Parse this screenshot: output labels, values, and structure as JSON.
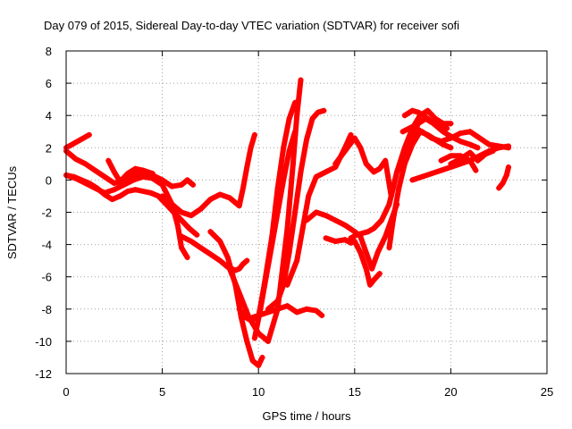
{
  "chart_data": {
    "type": "scatter",
    "title": "Day 079 of 2015, Sidereal Day-to-day VTEC variation (SDTVAR) for receiver sofi",
    "xlabel": "GPS time / hours",
    "ylabel": "SDTVAR / TECUs",
    "xlim": [
      0,
      25
    ],
    "ylim": [
      -12,
      8
    ],
    "xticks": [
      "0",
      "5",
      "10",
      "15",
      "20",
      "25"
    ],
    "yticks": [
      "8",
      "6",
      "4",
      "2",
      "0",
      "-2",
      "-4",
      "-6",
      "-8",
      "-10",
      "-12"
    ],
    "grid": true,
    "marker": "+",
    "color": "#ff0000",
    "series": [
      {
        "x": [
          0.0,
          0.4,
          0.8,
          1.2,
          1.6,
          2.0,
          2.4,
          2.8,
          3.2,
          3.6,
          4.0,
          4.4,
          4.8,
          5.2,
          5.6,
          6.0,
          6.4,
          6.8
        ],
        "y": [
          0.3,
          0.2,
          0.0,
          -0.2,
          -0.5,
          -0.9,
          -1.2,
          -1.0,
          -0.7,
          -0.6,
          -0.7,
          -0.8,
          -1.0,
          -1.5,
          -2.0,
          -2.5,
          -3.0,
          -3.4
        ]
      },
      {
        "x": [
          0.0,
          0.3,
          0.6,
          0.9,
          1.2
        ],
        "y": [
          2.0,
          2.2,
          2.4,
          2.6,
          2.8
        ]
      },
      {
        "x": [
          0.0,
          0.5,
          1.0,
          1.5,
          2.0,
          2.5,
          3.0,
          3.5,
          4.0,
          4.5,
          5.0,
          5.5,
          6.0,
          6.3,
          6.6
        ],
        "y": [
          1.8,
          1.3,
          1.0,
          0.6,
          0.2,
          -0.2,
          0.0,
          0.3,
          0.5,
          0.3,
          0.0,
          -0.4,
          -0.3,
          0.0,
          -0.3
        ]
      },
      {
        "x": [
          0.0,
          0.5,
          1.0,
          1.5,
          2.0,
          2.5,
          3.0,
          3.5,
          4.0,
          4.5,
          5.0,
          5.5,
          5.8,
          6.0,
          6.3
        ],
        "y": [
          0.3,
          0.1,
          -0.2,
          -0.5,
          -0.8,
          -0.6,
          -0.3,
          0.0,
          0.2,
          0.1,
          -0.3,
          -1.5,
          -2.8,
          -4.2,
          -4.8
        ]
      },
      {
        "x": [
          2.2,
          2.5,
          2.8,
          3.2,
          3.6,
          4.0,
          4.5
        ],
        "y": [
          1.2,
          0.5,
          -0.1,
          0.4,
          0.7,
          0.6,
          0.4
        ]
      },
      {
        "x": [
          5.0,
          5.5,
          6.0,
          6.5,
          7.0,
          7.5,
          8.0,
          8.5,
          9.0,
          9.2,
          9.4,
          9.6,
          9.8
        ],
        "y": [
          -1.0,
          -1.5,
          -2.0,
          -2.2,
          -1.8,
          -1.2,
          -0.9,
          -1.1,
          -1.6,
          -0.5,
          0.8,
          2.0,
          2.8
        ]
      },
      {
        "x": [
          6.0,
          6.5,
          7.0,
          7.5,
          8.0,
          8.4,
          8.8,
          9.0,
          9.2,
          9.4
        ],
        "y": [
          -3.5,
          -3.8,
          -4.2,
          -4.6,
          -5.0,
          -5.4,
          -5.6,
          -5.5,
          -5.2,
          -5.0
        ]
      },
      {
        "x": [
          7.5,
          8.0,
          8.4,
          8.8,
          9.1,
          9.4,
          9.7,
          10.0,
          10.2
        ],
        "y": [
          -3.2,
          -3.8,
          -4.8,
          -6.5,
          -8.5,
          -10.0,
          -11.2,
          -11.5,
          -11.0
        ]
      },
      {
        "x": [
          8.5,
          9.0,
          9.5,
          10.0,
          10.5,
          11.0,
          11.5,
          11.8,
          12.0,
          12.2
        ],
        "y": [
          -5.5,
          -7.0,
          -8.5,
          -9.5,
          -10.0,
          -8.0,
          -3.0,
          1.0,
          4.0,
          6.2
        ]
      },
      {
        "x": [
          9.0,
          9.3,
          9.6,
          10.0,
          10.3,
          10.7,
          11.0,
          11.3,
          11.6,
          11.9
        ],
        "y": [
          -8.0,
          -8.5,
          -8.7,
          -8.5,
          -6.5,
          -3.5,
          -0.5,
          2.0,
          3.8,
          4.8
        ]
      },
      {
        "x": [
          9.5,
          10.0,
          10.5,
          11.0,
          11.5,
          12.0,
          12.5,
          13.0,
          13.3
        ],
        "y": [
          -8.6,
          -8.4,
          -8.2,
          -8.0,
          -7.8,
          -8.2,
          -8.0,
          -8.1,
          -8.4
        ]
      },
      {
        "x": [
          9.8,
          10.1,
          10.4,
          10.7,
          11.0,
          11.3,
          11.6,
          11.9
        ],
        "y": [
          -9.8,
          -8.0,
          -6.0,
          -4.0,
          -2.0,
          0.0,
          1.8,
          3.0
        ]
      },
      {
        "x": [
          10.5,
          11.0,
          11.3,
          11.6,
          11.9,
          12.2,
          12.5,
          12.8,
          13.1,
          13.4
        ],
        "y": [
          -8.0,
          -7.5,
          -6.5,
          -4.5,
          -2.0,
          0.5,
          2.5,
          3.8,
          4.2,
          4.3
        ]
      },
      {
        "x": [
          11.5,
          12.0,
          12.3,
          12.6,
          13.0,
          13.5,
          14.0,
          14.5,
          14.8
        ],
        "y": [
          -6.5,
          -5.0,
          -3.0,
          -1.0,
          0.2,
          0.5,
          0.8,
          2.0,
          2.8
        ]
      },
      {
        "x": [
          12.5,
          13.0,
          13.5,
          14.0,
          14.5,
          15.0,
          15.3,
          15.6,
          15.9,
          16.2,
          16.6,
          16.9,
          17.2
        ],
        "y": [
          -2.5,
          -2.0,
          -2.2,
          -2.5,
          -2.8,
          -3.2,
          -3.5,
          -4.5,
          -5.5,
          -4.5,
          -3.5,
          -2.5,
          -1.5
        ]
      },
      {
        "x": [
          13.5,
          14.0,
          14.5,
          14.8,
          15.0,
          15.3,
          15.6,
          15.8,
          16.0,
          16.3
        ],
        "y": [
          -3.6,
          -3.8,
          -3.7,
          -3.9,
          -3.8,
          -4.5,
          -5.5,
          -6.5,
          -6.2,
          -5.8
        ]
      },
      {
        "x": [
          14.0,
          14.5,
          15.0,
          15.3,
          15.6,
          16.0,
          16.3,
          16.6,
          16.9,
          17.2,
          17.6,
          18.0,
          18.3,
          18.7,
          19.1,
          19.6,
          20.0,
          20.5,
          21.0,
          21.4
        ],
        "y": [
          1.0,
          1.8,
          2.6,
          2.0,
          1.0,
          0.5,
          0.7,
          1.2,
          -1.0,
          0.5,
          1.5,
          2.5,
          3.5,
          3.8,
          3.5,
          3.0,
          2.7,
          2.4,
          2.2,
          2.0
        ]
      },
      {
        "x": [
          14.8,
          15.1,
          15.4,
          15.7,
          16.0,
          16.4,
          16.8,
          17.2,
          17.6,
          18.0,
          18.4,
          18.8,
          19.2,
          19.6,
          20.0
        ],
        "y": [
          -3.6,
          -3.4,
          -3.3,
          -3.2,
          -3.0,
          -2.5,
          -1.5,
          0.5,
          2.0,
          3.2,
          4.0,
          4.3,
          3.8,
          3.5,
          3.5
        ]
      },
      {
        "x": [
          16.8,
          17.0,
          17.3,
          17.6,
          18.0,
          18.4,
          18.8,
          19.2,
          19.6,
          20.0
        ],
        "y": [
          -4.2,
          -2.5,
          -0.5,
          1.0,
          2.2,
          3.0,
          2.8,
          2.5,
          2.2,
          2.0
        ]
      },
      {
        "x": [
          17.5,
          18.0,
          18.5,
          19.0,
          19.5,
          20.0,
          20.5,
          21.0,
          21.5,
          22.0,
          22.5,
          23.0
        ],
        "y": [
          3.0,
          3.3,
          3.0,
          2.6,
          2.4,
          2.6,
          2.9,
          3.0,
          2.6,
          2.2,
          2.1,
          2.0
        ]
      },
      {
        "x": [
          17.6,
          18.0,
          18.3,
          18.6,
          19.0,
          19.4,
          19.8
        ],
        "y": [
          4.0,
          4.3,
          4.2,
          4.0,
          3.6,
          3.4,
          3.2
        ]
      },
      {
        "x": [
          18.0,
          18.5,
          19.0,
          19.5,
          20.0,
          20.5,
          21.0,
          21.5,
          22.0,
          22.5,
          23.0
        ],
        "y": [
          0.0,
          0.2,
          0.4,
          0.6,
          0.8,
          1.0,
          1.2,
          1.5,
          1.8,
          2.0,
          2.1
        ]
      },
      {
        "x": [
          19.5,
          20.0,
          20.5,
          21.0,
          21.3
        ],
        "y": [
          1.2,
          1.5,
          1.5,
          1.2,
          0.6
        ]
      },
      {
        "x": [
          20.0,
          20.5,
          21.0,
          21.4,
          21.8,
          22.2
        ],
        "y": [
          1.0,
          1.3,
          1.7,
          1.2,
          1.6,
          1.8
        ]
      },
      {
        "x": [
          22.5,
          22.7,
          22.9,
          23.0
        ],
        "y": [
          -0.5,
          -0.2,
          0.3,
          0.8
        ]
      }
    ]
  }
}
